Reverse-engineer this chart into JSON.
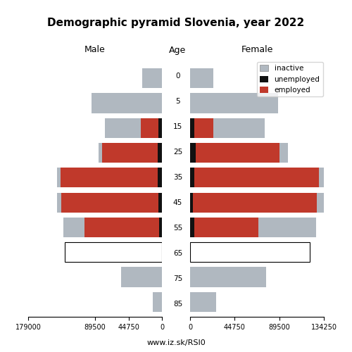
{
  "title": "Demographic pyramid Slovenia, year 2022",
  "subtitle": "www.iz.sk/RSI0",
  "col_male": "Male",
  "col_age": "Age",
  "col_female": "Female",
  "legend_inactive": "inactive",
  "legend_unemployed": "unemployed",
  "legend_employed": "employed",
  "color_inactive": "#b0b8c0",
  "color_unemployed": "#111111",
  "color_employed": "#c0392b",
  "age_labels": [
    85,
    75,
    65,
    55,
    45,
    35,
    25,
    15,
    5,
    0
  ],
  "male_inactive": [
    12000,
    55000,
    130000,
    28000,
    5000,
    5000,
    5000,
    48000,
    94000,
    26000
  ],
  "male_unemployed": [
    0,
    0,
    0,
    4000,
    5000,
    5500,
    6000,
    4500,
    0,
    0
  ],
  "male_employed": [
    0,
    0,
    0,
    100000,
    130000,
    130000,
    74000,
    24000,
    0,
    0
  ],
  "female_inactive": [
    26000,
    76000,
    120000,
    58000,
    8000,
    5000,
    8000,
    52000,
    88000,
    23000
  ],
  "female_unemployed": [
    0,
    0,
    0,
    4500,
    3000,
    4500,
    6000,
    4000,
    0,
    0
  ],
  "female_employed": [
    0,
    0,
    0,
    64000,
    124000,
    125000,
    84000,
    19000,
    0,
    0
  ],
  "xlim_left": 179000,
  "xlim_right": 134250,
  "figsize": [
    5.0,
    5.0
  ],
  "dpi": 100
}
